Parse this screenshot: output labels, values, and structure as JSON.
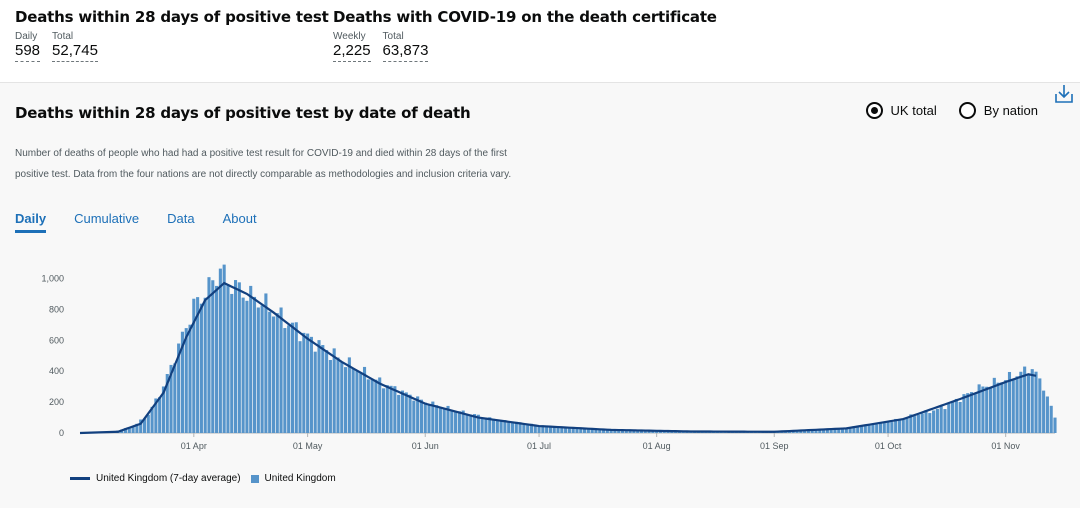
{
  "headline": {
    "left": {
      "title": "Deaths within 28 days of positive test",
      "metrics": [
        {
          "label": "Daily",
          "value": "598"
        },
        {
          "label": "Total",
          "value": "52,745"
        }
      ]
    },
    "right": {
      "title": "Deaths with COVID-19 on the death certificate",
      "metrics": [
        {
          "label": "Weekly",
          "value": "2,225"
        },
        {
          "label": "Total",
          "value": "63,873"
        }
      ]
    }
  },
  "card": {
    "title": "Deaths within 28 days of positive test by date of death",
    "radios": [
      {
        "label": "UK total",
        "checked": true
      },
      {
        "label": "By nation",
        "checked": false
      }
    ],
    "download_icon": "download-icon",
    "description": "Number of deaths of people who had had a positive test result for COVID-19 and died within 28 days of the first positive test. Data from the four nations are not directly comparable as methodologies and inclusion criteria vary.",
    "tabs": [
      {
        "label": "Daily",
        "active": true
      },
      {
        "label": "Cumulative",
        "active": false
      },
      {
        "label": "Data",
        "active": false
      },
      {
        "label": "About",
        "active": false
      }
    ]
  },
  "colors": {
    "bar": "#5694ca",
    "line": "#12407f",
    "link": "#1d70b8"
  },
  "chart_data": {
    "type": "bar",
    "title": "",
    "xlabel": "",
    "ylabel": "",
    "ylim": [
      0,
      1100
    ],
    "yticks": [
      0,
      200,
      400,
      600,
      800,
      1000
    ],
    "ytick_labels": [
      "0",
      "200",
      "400",
      "600",
      "800",
      "1,000"
    ],
    "x_start": "2020-03-02",
    "x_end": "2020-11-14",
    "xticks": [
      {
        "date": "2020-04-01",
        "label": "01 Apr"
      },
      {
        "date": "2020-05-01",
        "label": "01 May"
      },
      {
        "date": "2020-06-01",
        "label": "01 Jun"
      },
      {
        "date": "2020-07-01",
        "label": "01 Jul"
      },
      {
        "date": "2020-08-01",
        "label": "01 Aug"
      },
      {
        "date": "2020-09-01",
        "label": "01 Sep"
      },
      {
        "date": "2020-10-01",
        "label": "01 Oct"
      },
      {
        "date": "2020-11-01",
        "label": "01 Nov"
      }
    ],
    "legend_position": "bottom-left",
    "grid": false,
    "series": [
      {
        "name": "United Kingdom (7-day average)",
        "type": "line"
      },
      {
        "name": "United Kingdom",
        "type": "bar"
      }
    ],
    "daily_keypoints": [
      {
        "date": "2020-03-02",
        "value": 0
      },
      {
        "date": "2020-03-10",
        "value": 5
      },
      {
        "date": "2020-03-16",
        "value": 40
      },
      {
        "date": "2020-03-20",
        "value": 120
      },
      {
        "date": "2020-03-24",
        "value": 300
      },
      {
        "date": "2020-03-28",
        "value": 560
      },
      {
        "date": "2020-04-01",
        "value": 820
      },
      {
        "date": "2020-04-05",
        "value": 940
      },
      {
        "date": "2020-04-08",
        "value": 1060
      },
      {
        "date": "2020-04-10",
        "value": 980
      },
      {
        "date": "2020-04-15",
        "value": 900
      },
      {
        "date": "2020-04-20",
        "value": 830
      },
      {
        "date": "2020-04-25",
        "value": 730
      },
      {
        "date": "2020-05-01",
        "value": 620
      },
      {
        "date": "2020-05-10",
        "value": 470
      },
      {
        "date": "2020-05-20",
        "value": 330
      },
      {
        "date": "2020-06-01",
        "value": 200
      },
      {
        "date": "2020-06-10",
        "value": 140
      },
      {
        "date": "2020-06-20",
        "value": 85
      },
      {
        "date": "2020-07-01",
        "value": 50
      },
      {
        "date": "2020-07-15",
        "value": 25
      },
      {
        "date": "2020-08-01",
        "value": 12
      },
      {
        "date": "2020-08-15",
        "value": 8
      },
      {
        "date": "2020-09-01",
        "value": 7
      },
      {
        "date": "2020-09-15",
        "value": 20
      },
      {
        "date": "2020-10-01",
        "value": 70
      },
      {
        "date": "2020-10-15",
        "value": 160
      },
      {
        "date": "2020-10-25",
        "value": 290
      },
      {
        "date": "2020-11-01",
        "value": 350
      },
      {
        "date": "2020-11-08",
        "value": 420
      },
      {
        "date": "2020-11-11",
        "value": 300
      },
      {
        "date": "2020-11-14",
        "value": 100
      }
    ],
    "average_keypoints": [
      {
        "date": "2020-03-02",
        "value": 0
      },
      {
        "date": "2020-03-12",
        "value": 8
      },
      {
        "date": "2020-03-18",
        "value": 60
      },
      {
        "date": "2020-03-24",
        "value": 260
      },
      {
        "date": "2020-03-30",
        "value": 620
      },
      {
        "date": "2020-04-04",
        "value": 860
      },
      {
        "date": "2020-04-09",
        "value": 970
      },
      {
        "date": "2020-04-15",
        "value": 900
      },
      {
        "date": "2020-04-22",
        "value": 780
      },
      {
        "date": "2020-05-01",
        "value": 610
      },
      {
        "date": "2020-05-10",
        "value": 460
      },
      {
        "date": "2020-05-20",
        "value": 320
      },
      {
        "date": "2020-06-01",
        "value": 190
      },
      {
        "date": "2020-06-15",
        "value": 100
      },
      {
        "date": "2020-07-01",
        "value": 45
      },
      {
        "date": "2020-07-20",
        "value": 20
      },
      {
        "date": "2020-08-10",
        "value": 10
      },
      {
        "date": "2020-09-01",
        "value": 8
      },
      {
        "date": "2020-09-20",
        "value": 30
      },
      {
        "date": "2020-10-05",
        "value": 90
      },
      {
        "date": "2020-10-20",
        "value": 220
      },
      {
        "date": "2020-11-01",
        "value": 330
      },
      {
        "date": "2020-11-07",
        "value": 380
      },
      {
        "date": "2020-11-09",
        "value": 370
      }
    ]
  }
}
